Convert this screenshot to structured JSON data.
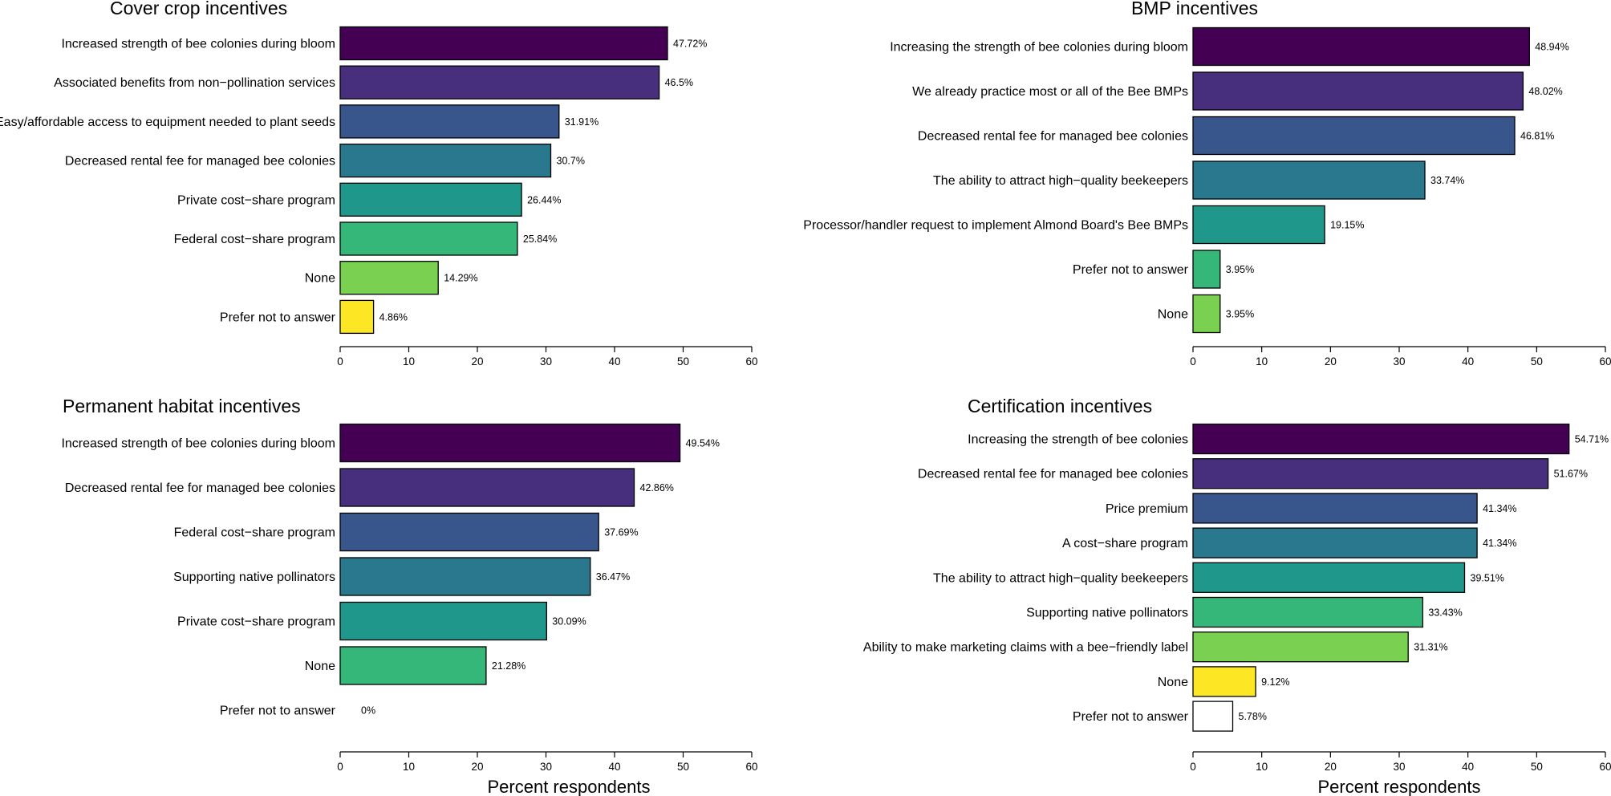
{
  "colors": {
    "viridis_9": [
      "#440154",
      "#472F7D",
      "#39568C",
      "#2A788E",
      "#1F988B",
      "#35B779",
      "#7AD151",
      "#FDE725",
      "#FFFFFF"
    ],
    "axis": "#000000"
  },
  "chart_data": [
    {
      "type": "bar",
      "orientation": "horizontal",
      "title": "Cover crop incentives",
      "xlabel": "",
      "xlim": [
        0,
        60
      ],
      "xticks": [
        0,
        10,
        20,
        30,
        40,
        50,
        60
      ],
      "categories": [
        "Increased strength of bee colonies during bloom",
        "Associated benefits from non−pollination services",
        "Easy/affordable access to equipment needed to plant seeds",
        "Decreased rental fee for managed bee colonies",
        "Private cost−share program",
        "Federal cost−share program",
        "None",
        "Prefer not to answer"
      ],
      "values": [
        47.72,
        46.5,
        31.91,
        30.7,
        26.44,
        25.84,
        14.29,
        4.86
      ],
      "value_labels": [
        "47.72%",
        "46.5%",
        "31.91%",
        "30.7%",
        "26.44%",
        "25.84%",
        "14.29%",
        "4.86%"
      ],
      "color_indices": [
        0,
        1,
        2,
        3,
        4,
        5,
        6,
        7
      ]
    },
    {
      "type": "bar",
      "orientation": "horizontal",
      "title": "BMP incentives",
      "xlabel": "",
      "xlim": [
        0,
        60
      ],
      "xticks": [
        0,
        10,
        20,
        30,
        40,
        50,
        60
      ],
      "categories": [
        "Increasing the strength of bee colonies during bloom",
        "We already practice most or all of the Bee BMPs",
        "Decreased rental fee for managed bee colonies",
        "The ability to attract high−quality beekeepers",
        "Processor/handler request to implement Almond Board's Bee BMPs",
        "Prefer not to answer",
        "None"
      ],
      "values": [
        48.94,
        48.02,
        46.81,
        33.74,
        19.15,
        3.95,
        3.95
      ],
      "value_labels": [
        "48.94%",
        "48.02%",
        "46.81%",
        "33.74%",
        "19.15%",
        "3.95%",
        "3.95%"
      ],
      "color_indices": [
        0,
        1,
        2,
        3,
        4,
        5,
        6
      ]
    },
    {
      "type": "bar",
      "orientation": "horizontal",
      "title": "Permanent habitat incentives",
      "xlabel": "Percent respondents",
      "xlim": [
        0,
        60
      ],
      "xticks": [
        0,
        10,
        20,
        30,
        40,
        50,
        60
      ],
      "categories": [
        "Increased strength of bee colonies during bloom",
        "Decreased rental fee for managed bee colonies",
        "Federal cost−share program",
        "Supporting native pollinators",
        "Private cost−share program",
        "None",
        "Prefer not to answer"
      ],
      "values": [
        49.54,
        42.86,
        37.69,
        36.47,
        30.09,
        21.28,
        0
      ],
      "value_labels": [
        "49.54%",
        "42.86%",
        "37.69%",
        "36.47%",
        "30.09%",
        "21.28%",
        "0%"
      ],
      "color_indices": [
        0,
        1,
        2,
        3,
        4,
        5,
        6
      ]
    },
    {
      "type": "bar",
      "orientation": "horizontal",
      "title": "Certification incentives",
      "xlabel": "Percent respondents",
      "xlim": [
        0,
        60
      ],
      "xticks": [
        0,
        10,
        20,
        30,
        40,
        50,
        60
      ],
      "categories": [
        "Increasing the strength of bee colonies",
        "Decreased rental fee for managed bee colonies",
        "Price premium",
        "A cost−share program",
        "The ability to attract high−quality beekeepers",
        "Supporting native pollinators",
        "Ability to make marketing claims with a bee−friendly label",
        "None",
        "Prefer not to answer"
      ],
      "values": [
        54.71,
        51.67,
        41.34,
        41.34,
        39.51,
        33.43,
        31.31,
        9.12,
        5.78
      ],
      "value_labels": [
        "54.71%",
        "51.67%",
        "41.34%",
        "41.34%",
        "39.51%",
        "33.43%",
        "31.31%",
        "9.12%",
        "5.78%"
      ],
      "color_indices": [
        0,
        1,
        2,
        3,
        4,
        5,
        6,
        7,
        8
      ]
    }
  ]
}
